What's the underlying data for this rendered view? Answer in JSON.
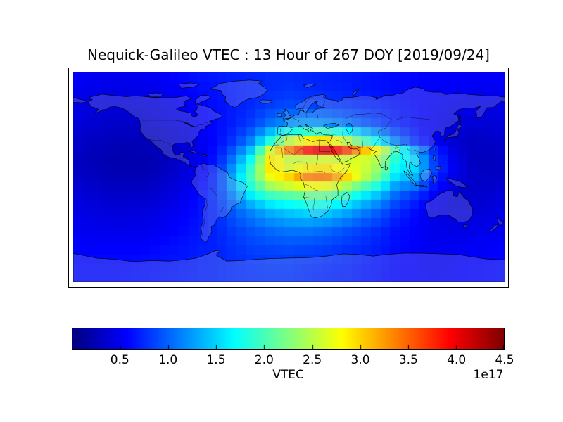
{
  "title": "Nequick-Galileo VTEC : 13 Hour of 267 DOY [2019/09/24]",
  "colorbar": {
    "label": "VTEC",
    "offset_label": "1e17",
    "tick_labels": [
      "0.5",
      "1.0",
      "1.5",
      "2.0",
      "2.5",
      "3.0",
      "3.5",
      "4.0",
      "4.5"
    ],
    "tick_values": [
      0.5,
      1.0,
      1.5,
      2.0,
      2.5,
      3.0,
      3.5,
      4.0,
      4.5
    ],
    "vmin": 0,
    "vmax": 4.5,
    "colormap": "jet"
  },
  "chart_data": {
    "type": "heatmap",
    "title": "Nequick-Galileo VTEC : 13 Hour of 267 DOY [2019/09/24]",
    "colorbar_label": "VTEC",
    "value_scale": "1e17",
    "colormap": "jet",
    "vmin": 0,
    "vmax": 4.5,
    "projection": "equirectangular world map with coastlines and country borders",
    "lon_range": [
      -180,
      180
    ],
    "lat_range": [
      -90,
      90
    ],
    "lons": [
      -180,
      -165,
      -150,
      -135,
      -120,
      -105,
      -90,
      -75,
      -60,
      -45,
      -30,
      -15,
      0,
      15,
      30,
      45,
      60,
      75,
      90,
      105,
      120,
      135,
      150,
      165,
      180
    ],
    "lats": [
      90,
      75,
      60,
      45,
      32,
      25,
      18,
      10,
      3,
      -5,
      -15,
      -28,
      -45,
      -60,
      -75,
      -90
    ],
    "values_1e17": [
      [
        0.55,
        0.52,
        0.5,
        0.5,
        0.52,
        0.55,
        0.6,
        0.65,
        0.68,
        0.7,
        0.72,
        0.75,
        0.75,
        0.72,
        0.7,
        0.68,
        0.65,
        0.62,
        0.6,
        0.58,
        0.55,
        0.55,
        0.55,
        0.55,
        0.55
      ],
      [
        0.5,
        0.48,
        0.45,
        0.45,
        0.46,
        0.5,
        0.55,
        0.6,
        0.64,
        0.68,
        0.72,
        0.75,
        0.78,
        0.75,
        0.72,
        0.7,
        0.66,
        0.63,
        0.6,
        0.57,
        0.55,
        0.52,
        0.5,
        0.5,
        0.5
      ],
      [
        0.45,
        0.42,
        0.4,
        0.38,
        0.4,
        0.44,
        0.5,
        0.56,
        0.62,
        0.68,
        0.75,
        0.85,
        0.9,
        0.88,
        0.85,
        0.8,
        0.75,
        0.7,
        0.63,
        0.58,
        0.53,
        0.48,
        0.45,
        0.44,
        0.45
      ],
      [
        0.4,
        0.36,
        0.33,
        0.32,
        0.33,
        0.37,
        0.44,
        0.52,
        0.6,
        0.7,
        0.85,
        1.1,
        1.25,
        1.3,
        1.25,
        1.15,
        1.0,
        0.85,
        0.7,
        0.6,
        0.5,
        0.42,
        0.38,
        0.38,
        0.4
      ],
      [
        0.35,
        0.3,
        0.27,
        0.26,
        0.27,
        0.3,
        0.38,
        0.48,
        0.6,
        0.8,
        1.15,
        1.8,
        2.4,
        2.7,
        2.8,
        2.45,
        1.95,
        1.5,
        1.0,
        0.7,
        0.5,
        0.38,
        0.3,
        0.32,
        0.35
      ],
      [
        0.33,
        0.28,
        0.24,
        0.23,
        0.24,
        0.28,
        0.36,
        0.47,
        0.62,
        0.95,
        1.45,
        2.6,
        3.6,
        4.2,
        4.5,
        4.1,
        3.3,
        2.8,
        1.9,
        1.2,
        0.75,
        0.45,
        0.3,
        0.3,
        0.33
      ],
      [
        0.3,
        0.26,
        0.22,
        0.21,
        0.22,
        0.26,
        0.35,
        0.47,
        0.65,
        1.1,
        1.75,
        2.95,
        2.6,
        2.6,
        2.7,
        2.6,
        2.7,
        2.5,
        1.8,
        1.5,
        0.85,
        0.5,
        0.3,
        0.28,
        0.3
      ],
      [
        0.3,
        0.26,
        0.22,
        0.21,
        0.22,
        0.27,
        0.36,
        0.5,
        0.7,
        1.25,
        1.95,
        3.0,
        2.5,
        2.55,
        2.6,
        2.5,
        2.6,
        2.3,
        1.7,
        1.55,
        0.9,
        0.55,
        0.32,
        0.28,
        0.3
      ],
      [
        0.32,
        0.28,
        0.24,
        0.23,
        0.24,
        0.29,
        0.38,
        0.53,
        0.75,
        1.4,
        2.1,
        2.9,
        3.1,
        3.6,
        3.7,
        3.3,
        2.8,
        2.3,
        1.6,
        1.45,
        0.85,
        0.5,
        0.33,
        0.3,
        0.32
      ],
      [
        0.35,
        0.32,
        0.28,
        0.27,
        0.28,
        0.33,
        0.42,
        0.56,
        0.78,
        1.4,
        2.0,
        2.6,
        2.8,
        3.0,
        3.0,
        2.7,
        2.3,
        1.9,
        1.3,
        1.2,
        0.7,
        0.45,
        0.33,
        0.32,
        0.35
      ],
      [
        0.4,
        0.37,
        0.33,
        0.32,
        0.33,
        0.38,
        0.47,
        0.6,
        0.78,
        1.2,
        1.7,
        2.0,
        2.1,
        2.2,
        2.2,
        2.0,
        1.7,
        1.4,
        1.0,
        0.8,
        0.55,
        0.4,
        0.35,
        0.36,
        0.4
      ],
      [
        0.45,
        0.42,
        0.4,
        0.4,
        0.41,
        0.45,
        0.52,
        0.62,
        0.75,
        1.0,
        1.2,
        1.4,
        1.5,
        1.6,
        1.55,
        1.4,
        1.2,
        1.0,
        0.75,
        0.6,
        0.45,
        0.38,
        0.38,
        0.4,
        0.45
      ],
      [
        0.5,
        0.48,
        0.47,
        0.47,
        0.48,
        0.52,
        0.58,
        0.65,
        0.72,
        0.85,
        0.95,
        1.05,
        1.1,
        1.1,
        1.05,
        0.95,
        0.85,
        0.75,
        0.62,
        0.55,
        0.48,
        0.45,
        0.45,
        0.47,
        0.5
      ],
      [
        0.55,
        0.55,
        0.55,
        0.55,
        0.56,
        0.6,
        0.63,
        0.68,
        0.7,
        0.78,
        0.85,
        0.88,
        0.9,
        0.88,
        0.85,
        0.8,
        0.75,
        0.68,
        0.6,
        0.55,
        0.5,
        0.5,
        0.52,
        0.53,
        0.55
      ],
      [
        0.6,
        0.6,
        0.6,
        0.6,
        0.62,
        0.64,
        0.66,
        0.7,
        0.72,
        0.75,
        0.78,
        0.8,
        0.8,
        0.78,
        0.75,
        0.72,
        0.68,
        0.63,
        0.58,
        0.55,
        0.52,
        0.55,
        0.57,
        0.58,
        0.6
      ],
      [
        0.6,
        0.6,
        0.6,
        0.62,
        0.63,
        0.65,
        0.67,
        0.7,
        0.72,
        0.75,
        0.76,
        0.78,
        0.78,
        0.75,
        0.72,
        0.7,
        0.66,
        0.62,
        0.58,
        0.55,
        0.53,
        0.55,
        0.57,
        0.58,
        0.6
      ]
    ]
  }
}
